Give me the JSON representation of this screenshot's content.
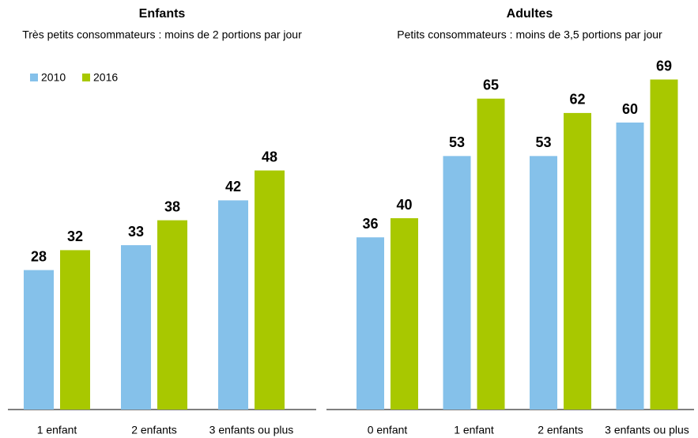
{
  "chart_data": [
    {
      "type": "bar",
      "title": "Enfants",
      "subtitle": "Très petits consommateurs : moins de 2 portions par jour",
      "categories": [
        "1 enfant",
        "2 enfants",
        "3 enfants ou plus"
      ],
      "series": [
        {
          "name": "2010",
          "color": "#85c1ea",
          "values": [
            28,
            33,
            42
          ]
        },
        {
          "name": "2016",
          "color": "#a8c800",
          "values": [
            32,
            38,
            48
          ]
        }
      ],
      "legend": "top-left"
    },
    {
      "type": "bar",
      "title": "Adultes",
      "subtitle": "Petits consommateurs : moins de 3,5 portions par jour",
      "categories": [
        "0 enfant",
        "1 enfant",
        "2 enfants",
        "3 enfants ou plus"
      ],
      "series": [
        {
          "color": "#85c1ea",
          "values": [
            36,
            53,
            53,
            60
          ]
        },
        {
          "color": "#a8c800",
          "values": [
            40,
            65,
            62,
            69
          ]
        }
      ]
    }
  ]
}
